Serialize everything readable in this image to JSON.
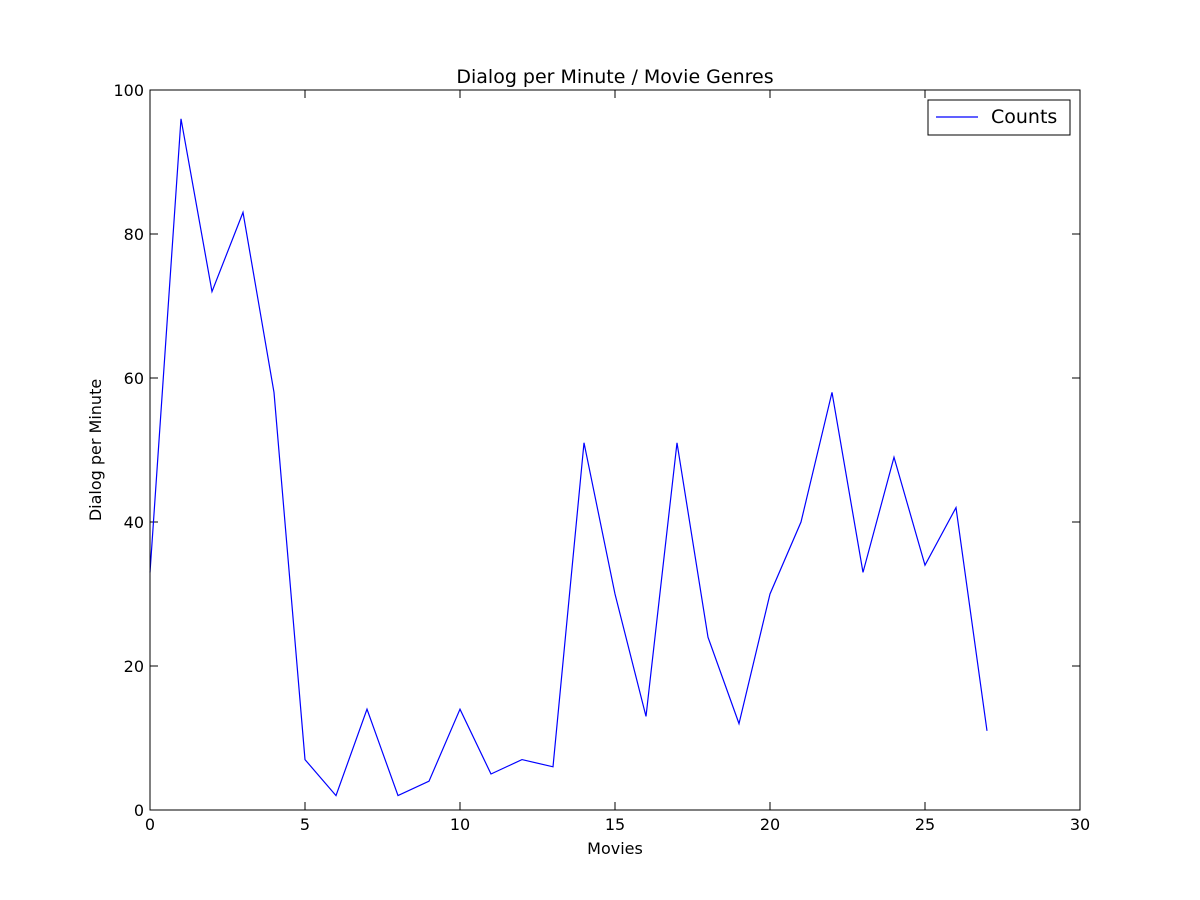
{
  "chart_data": {
    "type": "line",
    "title": "Dialog per Minute / Movie Genres",
    "xlabel": "Movies",
    "ylabel": "Dialog per Minute",
    "xlim": [
      0,
      30
    ],
    "ylim": [
      0,
      100
    ],
    "xticks": [
      0,
      5,
      10,
      15,
      20,
      25,
      30
    ],
    "yticks": [
      0,
      20,
      40,
      60,
      80,
      100
    ],
    "xtick_labels": [
      "0",
      "5",
      "10",
      "15",
      "20",
      "25",
      "30"
    ],
    "ytick_labels": [
      "0",
      "20",
      "40",
      "60",
      "80",
      "100"
    ],
    "grid": false,
    "legend_position": "top-right",
    "series": [
      {
        "name": "Counts",
        "color": "#0000ff",
        "x": [
          0,
          1,
          2,
          3,
          4,
          5,
          6,
          7,
          8,
          9,
          10,
          11,
          12,
          13,
          14,
          15,
          16,
          17,
          18,
          19,
          20,
          21,
          22,
          23,
          24,
          25,
          26,
          27
        ],
        "y": [
          33,
          96,
          72,
          83,
          58,
          7,
          2,
          14,
          2,
          4,
          14,
          5,
          7,
          6,
          51,
          30,
          13,
          51,
          24,
          12,
          30,
          40,
          58,
          33,
          49,
          34,
          42,
          11
        ]
      }
    ]
  }
}
